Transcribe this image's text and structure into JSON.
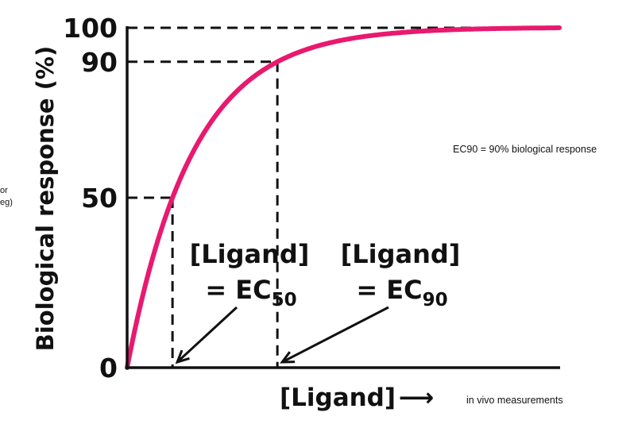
{
  "chart_data": {
    "type": "line",
    "ylabel": "Biological response (%)",
    "xlabel": "[Ligand]",
    "xlabel_arrow": "⟶",
    "y_ticks": [
      "100",
      "90",
      "50",
      "0"
    ],
    "ylim": [
      0,
      100
    ],
    "grid": false,
    "series": [
      {
        "color": "#e8196e",
        "curve": "saturating",
        "y_start": 0,
        "y_end": 100
      }
    ],
    "reference_lines": [
      {
        "y": 50,
        "dashed": true
      },
      {
        "y": 90,
        "dashed": true
      },
      {
        "y": 100,
        "dashed": true
      }
    ],
    "annotations": [
      {
        "line1": "[Ligand]",
        "line2_prefix": "= EC",
        "subscript": "50",
        "points_to": "x at 50% response"
      },
      {
        "line1": "[Ligand]",
        "line2_prefix": "= EC",
        "subscript": "90",
        "points_to": "x at 90% response"
      }
    ]
  },
  "notes": {
    "ec90": "EC90 = 90% biological response",
    "in_vivo": "in vivo measurements",
    "left_edge_line1": "or",
    "left_edge_line2": "eg)"
  },
  "colors": {
    "curve": "#e8196e",
    "axis": "#111111",
    "background": "#ffffff"
  }
}
